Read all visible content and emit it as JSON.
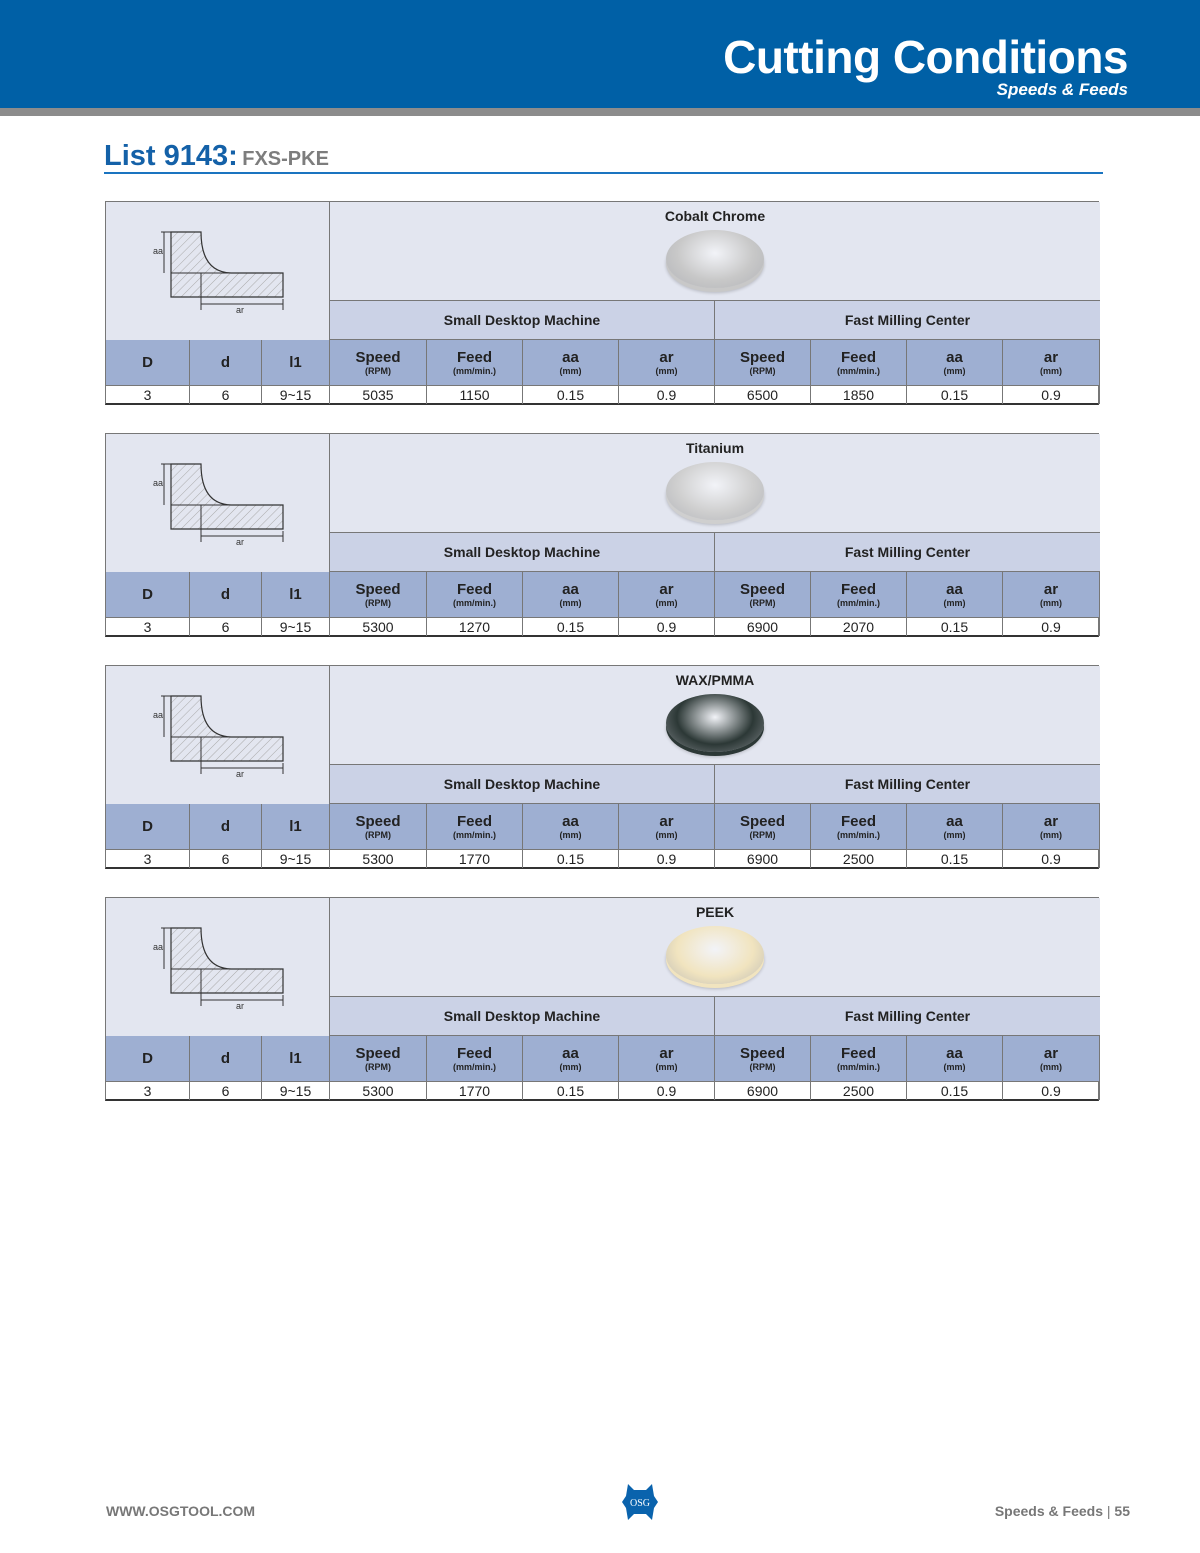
{
  "header": {
    "title": "Cutting Conditions",
    "subtitle": "Speeds & Feeds"
  },
  "list": {
    "number": "List 9143:",
    "code": "FXS-PKE"
  },
  "diagram_labels": {
    "aa": "aa",
    "ar": "ar"
  },
  "machines": [
    "Small Desktop Machine",
    "Fast Milling Center"
  ],
  "columns": [
    {
      "main": "D",
      "unit": ""
    },
    {
      "main": "d",
      "unit": ""
    },
    {
      "main": "l1",
      "unit": ""
    },
    {
      "main": "Speed",
      "unit": "(RPM)"
    },
    {
      "main": "Feed",
      "unit": "(mm/min.)"
    },
    {
      "main": "aa",
      "unit": "(mm)"
    },
    {
      "main": "ar",
      "unit": "(mm)"
    },
    {
      "main": "Speed",
      "unit": "(RPM)"
    },
    {
      "main": "Feed",
      "unit": "(mm/min.)"
    },
    {
      "main": "aa",
      "unit": "(mm)"
    },
    {
      "main": "ar",
      "unit": "(mm)"
    }
  ],
  "tables": [
    {
      "material": "Cobalt Chrome",
      "disc_color": "#c8c8c8",
      "row": [
        "3",
        "6",
        "9~15",
        "5035",
        "1150",
        "0.15",
        "0.9",
        "6500",
        "1850",
        "0.15",
        "0.9"
      ]
    },
    {
      "material": "Titanium",
      "disc_color": "#cfcfcf",
      "row": [
        "3",
        "6",
        "9~15",
        "5300",
        "1270",
        "0.15",
        "0.9",
        "6900",
        "2070",
        "0.15",
        "0.9"
      ]
    },
    {
      "material": "WAX/PMMA",
      "disc_color": "#2c3836",
      "row": [
        "3",
        "6",
        "9~15",
        "5300",
        "1770",
        "0.15",
        "0.9",
        "6900",
        "2500",
        "0.15",
        "0.9"
      ]
    },
    {
      "material": "PEEK",
      "disc_color": "#f1e4bf",
      "row": [
        "3",
        "6",
        "9~15",
        "5300",
        "1770",
        "0.15",
        "0.9",
        "6900",
        "2500",
        "0.15",
        "0.9"
      ]
    }
  ],
  "footer": {
    "website": "WWW.OSGTOOL.COM",
    "section": "Speeds & Feeds",
    "page": "55",
    "logo_text": "OSG"
  },
  "colors": {
    "brand_blue": "#0060a6",
    "header_row": "#9eafd2",
    "machine_row": "#cbd2e6"
  }
}
